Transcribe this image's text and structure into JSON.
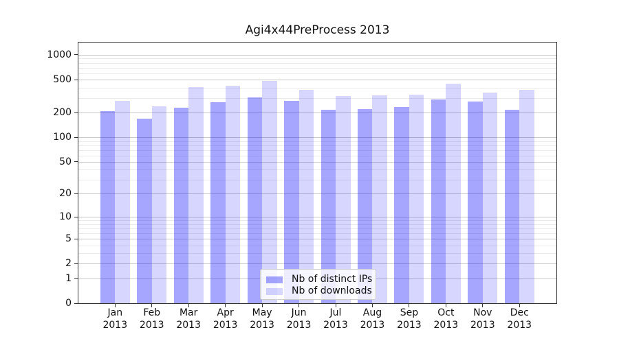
{
  "chart_data": {
    "type": "bar",
    "title": "Agi4x44PreProcess 2013",
    "categories": [
      "Jan 2013",
      "Feb 2013",
      "Mar 2013",
      "Apr 2013",
      "May 2013",
      "Jun 2013",
      "Jul 2013",
      "Aug 2013",
      "Sep 2013",
      "Oct 2013",
      "Nov 2013",
      "Dec 2013"
    ],
    "series": [
      {
        "name": "Nb of distinct IPs",
        "color": "rgba(0,0,255,0.35)",
        "color_hex_on_white": "#a6a6ff",
        "values": [
          208,
          170,
          227,
          269,
          305,
          277,
          215,
          222,
          233,
          290,
          272,
          215
        ]
      },
      {
        "name": "Nb of downloads",
        "color": "rgba(0,0,255,0.16)",
        "color_hex_on_white": "#d9d9ff",
        "values": [
          276,
          237,
          404,
          420,
          482,
          377,
          315,
          326,
          329,
          447,
          351,
          377
        ]
      }
    ],
    "yscale": "log10(value+1)",
    "ylim": [
      0,
      1408
    ],
    "yticks": [
      0,
      1,
      2,
      5,
      10,
      20,
      50,
      100,
      200,
      500,
      1000
    ],
    "yticks_minor": [
      3,
      4,
      6,
      7,
      8,
      9,
      30,
      40,
      60,
      70,
      80,
      90,
      300,
      400,
      600,
      700,
      800,
      900
    ],
    "grid": "both",
    "legend_position": "lower center"
  },
  "colors": {
    "background": "#ffffff",
    "spine": "#333333",
    "grid_major": "#c9c9c9",
    "grid_minor": "#eaeaea",
    "text": "#111111",
    "legend_border": "#cccccc",
    "legend_background": "rgba(255,255,255,0.8)"
  }
}
